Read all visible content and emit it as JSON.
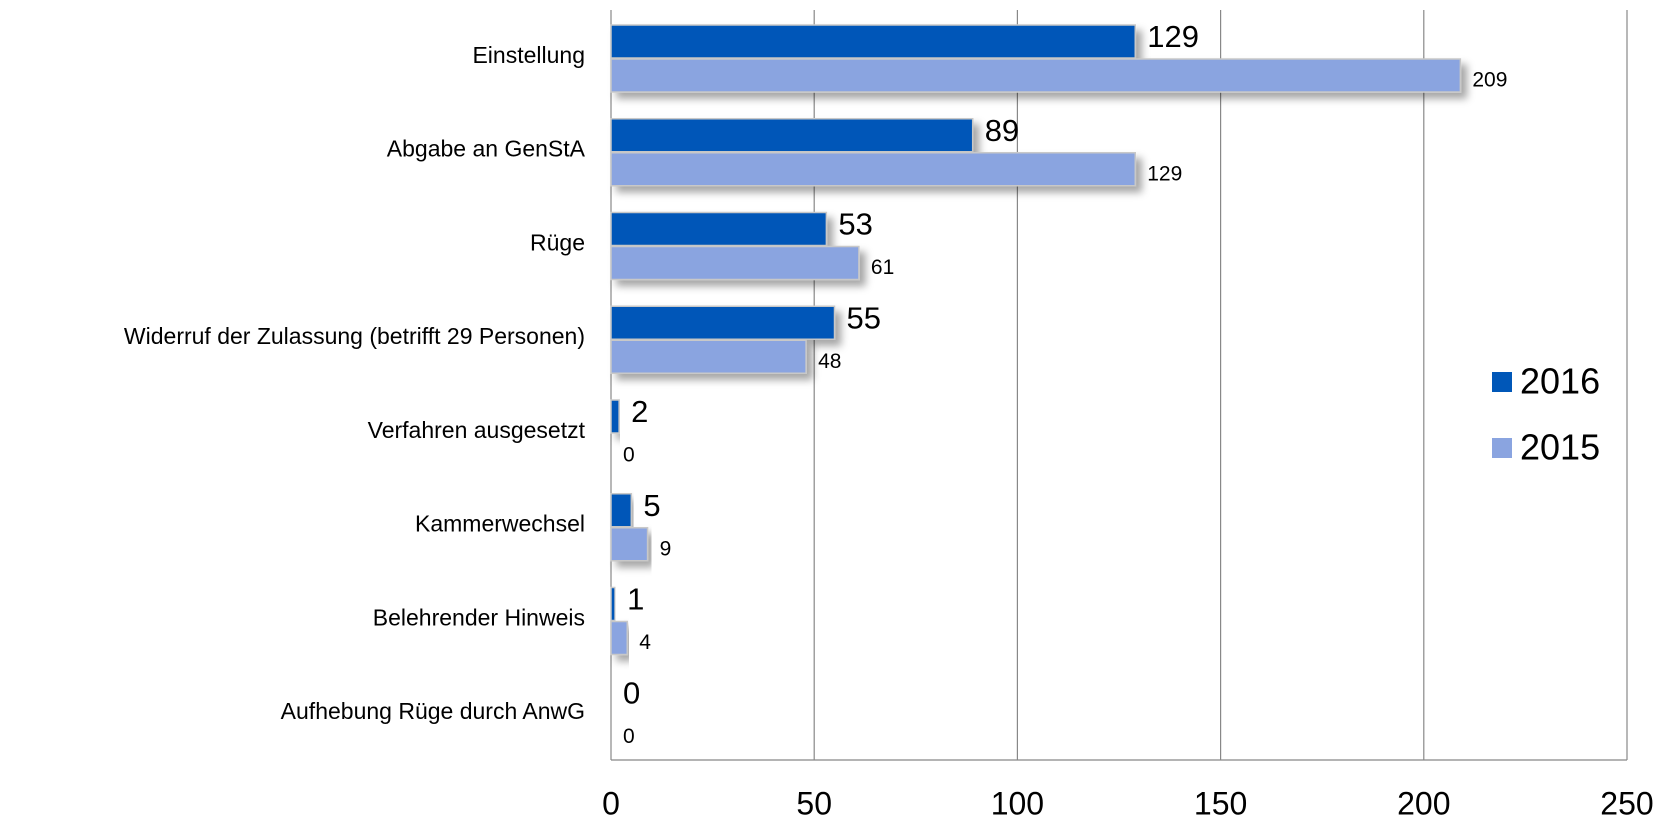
{
  "chart_data": {
    "type": "bar",
    "orientation": "horizontal",
    "categories": [
      "Einstellung",
      "Abgabe an GenStA",
      "Rüge",
      "Widerruf der Zulassung  (betrifft 29 Personen)",
      "Verfahren ausgesetzt",
      "Kammerwechsel",
      "Belehrender Hinweis",
      "Aufhebung Rüge durch AnwG"
    ],
    "series": [
      {
        "name": "2016",
        "color": "#0057b8",
        "values": [
          129,
          89,
          53,
          55,
          2,
          5,
          1,
          0
        ]
      },
      {
        "name": "2015",
        "color": "#8aa4e0",
        "values": [
          209,
          129,
          61,
          48,
          0,
          9,
          4,
          0
        ]
      }
    ],
    "xlim": [
      0,
      250
    ],
    "xticks": [
      0,
      50,
      100,
      150,
      200,
      250
    ],
    "grid": true,
    "legend": "right"
  }
}
